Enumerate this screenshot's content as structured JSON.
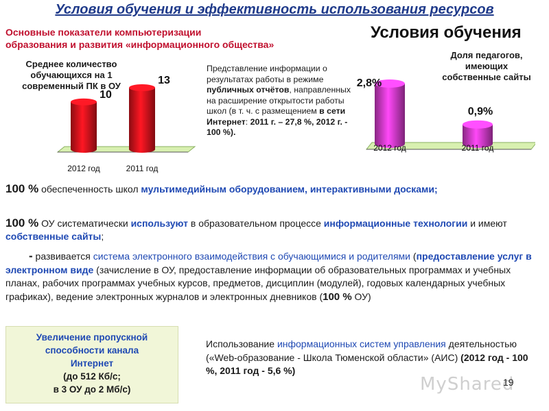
{
  "header": {
    "title": "Условия обучения и эффективность использования ресурсов",
    "subtitle_line1": "Основные показатели компьютеризации",
    "subtitle_line2": "образования и развития «информационного общества»",
    "section_title": "Условия обучения"
  },
  "chart_data": [
    {
      "type": "bar",
      "title": "Среднее количество обучающихся на 1 современный ПК в ОУ",
      "categories": [
        "2012 год",
        "2011 год"
      ],
      "values": [
        10,
        13
      ],
      "value_labels": [
        "10",
        "13"
      ],
      "bar_color": "#e8141e"
    },
    {
      "type": "bar",
      "title": "Доля педагогов, имеющих собственные сайты",
      "categories": [
        "2012 год",
        "2011 год"
      ],
      "values": [
        2.8,
        0.9
      ],
      "value_labels": [
        "2,8%",
        "0,9%"
      ],
      "bar_color": "#e23fd8"
    }
  ],
  "chart1_title_lines": [
    "Среднее количество",
    "обучающихся на 1",
    "современный ПК в ОУ"
  ],
  "chart2_title_lines": [
    "Доля педагогов,",
    "имеющих",
    "собственные сайты"
  ],
  "info": {
    "t1": "Представление информации о результатах работы в режиме ",
    "t2": "публичных отчётов",
    "t3": ", направленных на расширение открытости работы школ (в т. ч. с размещением ",
    "t4": "в сети Интернет",
    "t5": ": ",
    "t6": "2011 г. – 27,8 %, 2012 г. - 100 %)."
  },
  "p1": {
    "a": "100 %",
    "b": " обеспеченность школ ",
    "c": "мультимедийным оборудованием, интерактивными досками;"
  },
  "p2": {
    "a": "100 %",
    "b": " ОУ систематически ",
    "c": "используют",
    "d": " в образовательном процессе ",
    "e": "информационные технологии",
    "f": " и имеют ",
    "g": "собственные сайты",
    "h": ";"
  },
  "p3": {
    "a": "-",
    "b": " развивается ",
    "c": "система электронного взаимодействия с обучающимися и родителями",
    "d": " (",
    "e": "предоставление услуг в электронном виде",
    "f": " (зачисление в ОУ, предоставление информации об образовательных программах и учебных планах, рабочих программах учебных курсов, предметов, дисциплин (модулей), годовых календарных учебных графиках), ведение электронных журналов и электронных дневников (",
    "g": "100 %",
    "h": " ОУ)"
  },
  "box_left": {
    "line1": "Увеличение пропускной",
    "line2": "способности канала",
    "line3": "Интернет",
    "line4": "(до 512 Кб/с;",
    "line5": "в 3 ОУ до 2 Мб/с)"
  },
  "p4": {
    "a": "Использование ",
    "b": "информационных систем управления",
    "c": " деятельностью («Web-образование - Школа Тюменской области» (АИС) ",
    "d": "(2012 год - 100 %, 2011 год - 5,6 %)"
  },
  "page_number": "19",
  "watermark": "MyShared"
}
